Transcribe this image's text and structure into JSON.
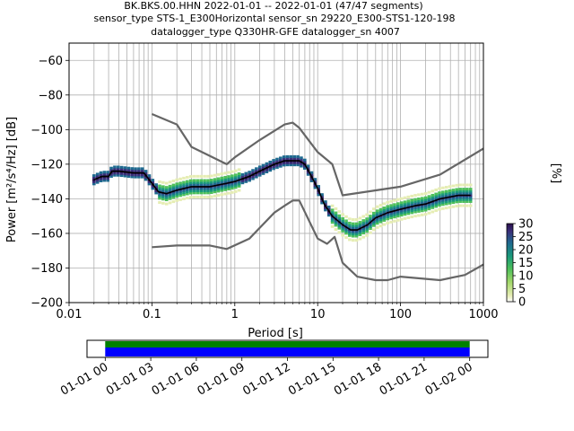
{
  "title": {
    "line1": "BK.BKS.00.HHN   2022-01-01 -- 2022-01-01  (47/47 segments)",
    "line2": "sensor_type STS-1_E300Horizontal sensor_sn 29220_E300-STS1-120-198",
    "line3": "datalogger_type Q330HR-GFE datalogger_sn 4007"
  },
  "colors": {
    "model_line": "#666666",
    "mean_line": "#000000",
    "grid": "#b0b0b0",
    "coverage_green": "#008000",
    "coverage_blue": "#0000ff"
  },
  "colorbar": {
    "label": "[%]",
    "ticks": [
      "0",
      "5",
      "10",
      "15",
      "20",
      "25",
      "30"
    ],
    "range": [
      0,
      30
    ],
    "colormap": "pqlx"
  },
  "coverage": {
    "tick_labels": [
      "01-01 00",
      "01-01 03",
      "01-01 06",
      "01-01 09",
      "01-01 12",
      "01-01 15",
      "01-01 18",
      "01-01 21",
      "01-02 00"
    ],
    "hours": [
      0,
      3,
      6,
      9,
      12,
      15,
      18,
      21,
      24
    ],
    "range_hours": [
      -1.2,
      25.2
    ],
    "data_span_hours": [
      0,
      24
    ]
  },
  "chart_data": {
    "type": "line",
    "xlabel": "Period [s]",
    "ylabel": "Power [m²/s⁴/Hz] [dB]",
    "xscale": "log",
    "xlim": [
      0.01,
      1000
    ],
    "ylim": [
      -200,
      -50
    ],
    "x_ticks": [
      0.01,
      0.1,
      1,
      10,
      100,
      1000
    ],
    "x_tick_labels": [
      "0.01",
      "0.1",
      "1",
      "10",
      "100",
      "1000"
    ],
    "y_ticks": [
      -200,
      -180,
      -160,
      -140,
      -120,
      -100,
      -80,
      -60
    ],
    "y_tick_labels": [
      "−200",
      "−180",
      "−160",
      "−140",
      "−120",
      "−100",
      "−80",
      "−60"
    ],
    "grid": true,
    "series": [
      {
        "x": [
          0.1,
          0.2,
          0.3,
          0.8,
          1.0,
          2.0,
          4.0,
          5.0,
          6.0,
          10.0,
          15.0,
          20.0,
          100.0,
          300.0,
          1000.0
        ],
        "y": [
          -91,
          -97,
          -110,
          -120,
          -116,
          -106,
          -97,
          -96,
          -99,
          -113,
          -120,
          -138,
          -133,
          -126,
          -111
        ]
      },
      {
        "x": [
          0.1,
          0.2,
          0.5,
          0.8,
          1.5,
          3.0,
          4.0,
          5.0,
          6.0,
          10.0,
          13.0,
          16.0,
          20.0,
          30.0,
          50.0,
          70.0,
          100.0,
          300.0,
          600.0,
          1000.0
        ],
        "y": [
          -168,
          -167,
          -167,
          -169,
          -163,
          -148,
          -144,
          -141,
          -141,
          -163,
          -166,
          -162,
          -177,
          -185,
          -187,
          -187,
          -185,
          -187,
          -184,
          -178
        ]
      },
      {
        "x": [
          0.02,
          0.025,
          0.03,
          0.033,
          0.04,
          0.06,
          0.08,
          0.1,
          0.12,
          0.15,
          0.2,
          0.3,
          0.5,
          0.8,
          1.0,
          1.5,
          2.0,
          3.0,
          4.0,
          5.0,
          6.0,
          7.0,
          8.0,
          10.0,
          12.0,
          15.0,
          20.0,
          25.0,
          30.0,
          40.0,
          50.0,
          70.0,
          100.0,
          150.0,
          200.0,
          300.0,
          500.0,
          700.0
        ],
        "y": [
          -129,
          -127,
          -127,
          -124,
          -124,
          -125,
          -125,
          -131,
          -136,
          -137,
          -135,
          -133,
          -133,
          -131,
          -130,
          -127,
          -124,
          -120,
          -118,
          -118,
          -118,
          -120,
          -125,
          -134,
          -143,
          -150,
          -155,
          -158,
          -158,
          -155,
          -151,
          -148,
          -146,
          -144,
          -143,
          -140,
          -138,
          -138
        ]
      }
    ],
    "pdf_max_percent": 30
  }
}
